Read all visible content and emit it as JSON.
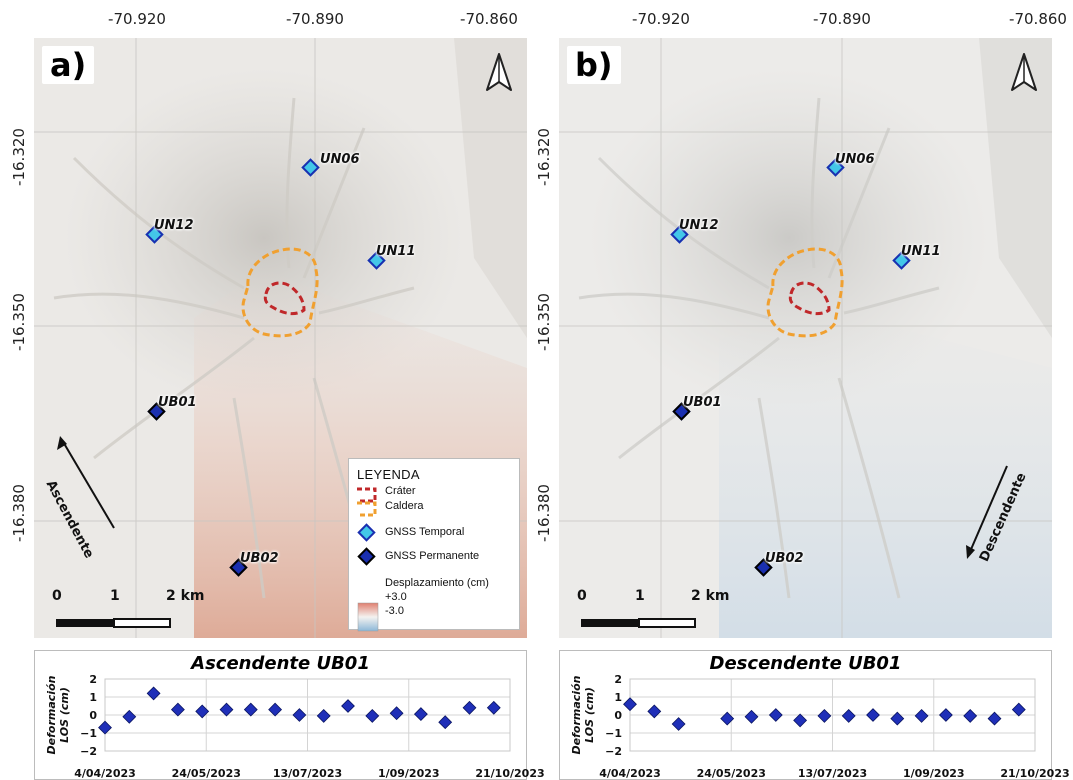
{
  "coords": {
    "lon_labels": [
      "-70.920",
      "-70.890",
      "-70.860"
    ],
    "lat_labels": [
      "-16.320",
      "-16.350",
      "-16.380"
    ]
  },
  "panels": [
    {
      "letter": "a)",
      "stations": [
        {
          "label": "UN06",
          "kind": "temporal"
        },
        {
          "label": "UN12",
          "kind": "temporal"
        },
        {
          "label": "UN11",
          "kind": "temporal"
        },
        {
          "label": "UB01",
          "kind": "permanent"
        },
        {
          "label": "UB02",
          "kind": "permanent"
        }
      ],
      "orbit_label": "Ascendente",
      "scale": {
        "s0": "0",
        "s1": "1",
        "s2": "2 km"
      }
    },
    {
      "letter": "b)",
      "stations": [
        {
          "label": "UN06",
          "kind": "temporal"
        },
        {
          "label": "UN12",
          "kind": "temporal"
        },
        {
          "label": "UN11",
          "kind": "temporal"
        },
        {
          "label": "UB01",
          "kind": "permanent"
        },
        {
          "label": "UB02",
          "kind": "permanent"
        }
      ],
      "orbit_label": "Descendente",
      "scale": {
        "s0": "0",
        "s1": "1",
        "s2": "2 km"
      }
    }
  ],
  "legend": {
    "title": "LEYENDA",
    "crater": "Cráter",
    "caldera": "Caldera",
    "gnss_temporal": "GNSS Temporal",
    "gnss_permanente": "GNSS Permanente",
    "displacement_title": "Desplazamiento (cm)",
    "plus": "+3.0",
    "minus": "-3.0"
  },
  "colors": {
    "crater": "#c0282a",
    "caldera": "#f0a030",
    "temporal_fill": "#43c7e8",
    "permanent_fill": "#1a2fb0",
    "series": "#1f2fb8",
    "pos_displacement": "#e08070",
    "neg_displacement": "#8cb8d8"
  },
  "chart_data": [
    {
      "type": "scatter",
      "title": "Ascendente  UB01",
      "ylabel": "Deformación LOS (cm)",
      "ylim": [
        -2,
        2
      ],
      "yticks": [
        "2",
        "1",
        "0",
        "−1",
        "−2"
      ],
      "xtick_labels": [
        "4/04/2023",
        "24/05/2023",
        "13/07/2023",
        "1/09/2023",
        "21/10/2023"
      ],
      "xlim": [
        "2023-04-04",
        "2023-10-21"
      ],
      "x": [
        "2023-04-04",
        "2023-04-16",
        "2023-04-28",
        "2023-05-10",
        "2023-05-22",
        "2023-06-03",
        "2023-06-15",
        "2023-06-27",
        "2023-07-09",
        "2023-07-21",
        "2023-08-02",
        "2023-08-14",
        "2023-08-26",
        "2023-09-07",
        "2023-09-19",
        "2023-10-01",
        "2023-10-13"
      ],
      "y": [
        -0.7,
        -0.1,
        1.2,
        0.3,
        0.2,
        0.3,
        0.3,
        0.3,
        0.0,
        -0.05,
        0.5,
        -0.05,
        0.1,
        0.05,
        -0.4,
        0.4,
        0.4
      ]
    },
    {
      "type": "scatter",
      "title": "Descendente  UB01",
      "ylabel": "Deformación LOS (cm)",
      "ylim": [
        -2,
        2
      ],
      "yticks": [
        "2",
        "1",
        "0",
        "−1",
        "−2"
      ],
      "xtick_labels": [
        "4/04/2023",
        "24/05/2023",
        "13/07/2023",
        "1/09/2023",
        "21/10/2023"
      ],
      "xlim": [
        "2023-04-04",
        "2023-10-21"
      ],
      "x": [
        "2023-04-04",
        "2023-04-16",
        "2023-04-28",
        "2023-05-22",
        "2023-06-03",
        "2023-06-15",
        "2023-06-27",
        "2023-07-09",
        "2023-07-21",
        "2023-08-02",
        "2023-08-14",
        "2023-08-26",
        "2023-09-07",
        "2023-09-19",
        "2023-10-01",
        "2023-10-13"
      ],
      "y": [
        0.6,
        0.2,
        -0.5,
        -0.2,
        -0.1,
        0.0,
        -0.3,
        -0.05,
        -0.05,
        0.0,
        -0.2,
        -0.05,
        0.0,
        -0.05,
        -0.2,
        0.3
      ]
    }
  ]
}
